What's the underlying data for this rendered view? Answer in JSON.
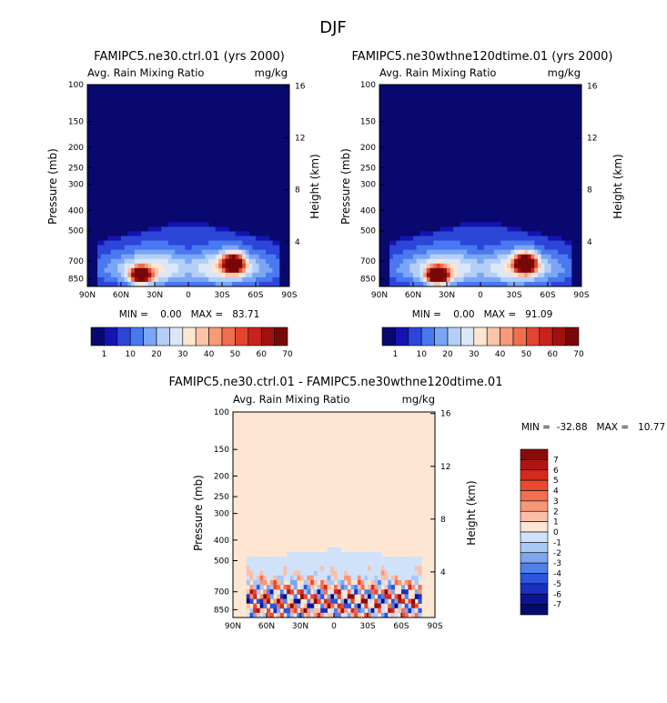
{
  "figure": {
    "title": "DJF"
  },
  "chart_data": [
    {
      "type": "heatmap",
      "title": "FAMIPC5.ne30.ctrl.01 (yrs 2000)",
      "variable": "Avg. Rain Mixing Ratio",
      "units": "mg/kg",
      "xlabel": "",
      "ylabel": "Pressure (mb)",
      "ylabel_right": "Height (km)",
      "x_ticks": [
        "90N",
        "60N",
        "30N",
        "0",
        "30S",
        "60S",
        "90S"
      ],
      "y_ticks": [
        "100",
        "150",
        "200",
        "250",
        "300",
        "400",
        "500",
        "700",
        "850"
      ],
      "y_right_ticks": [
        "16",
        "12",
        "8",
        "4"
      ],
      "minmax": "MIN =    0.00   MAX =   83.71",
      "min": 0.0,
      "max": 83.71,
      "colorbar": {
        "orientation": "horizontal",
        "labels": [
          "1",
          "10",
          "20",
          "30",
          "40",
          "50",
          "60",
          "70"
        ],
        "colors": [
          "#08086e",
          "#1414b4",
          "#2c46d8",
          "#4a78f0",
          "#7aa6f5",
          "#b4cff7",
          "#dbe7f8",
          "#fde6d2",
          "#fbc4a8",
          "#f79a78",
          "#f06e4e",
          "#e24430",
          "#c8221a",
          "#a2100e",
          "#780808"
        ]
      },
      "blobs": [
        {
          "lat": 42,
          "p": 820,
          "v": 75
        },
        {
          "lat": -40,
          "p": 720,
          "v": 83
        }
      ]
    },
    {
      "type": "heatmap",
      "title": "FAMIPC5.ne30wthne120dtime.01 (yrs 2000)",
      "variable": "Avg. Rain Mixing Ratio",
      "units": "mg/kg",
      "xlabel": "",
      "ylabel": "Pressure (mb)",
      "ylabel_right": "Height (km)",
      "x_ticks": [
        "90N",
        "60N",
        "30N",
        "0",
        "30S",
        "60S",
        "90S"
      ],
      "y_ticks": [
        "100",
        "150",
        "200",
        "250",
        "300",
        "400",
        "500",
        "700",
        "850"
      ],
      "y_right_ticks": [
        "16",
        "12",
        "8",
        "4"
      ],
      "minmax": "MIN =    0.00   MAX =   91.09",
      "min": 0.0,
      "max": 91.09,
      "colorbar": {
        "orientation": "horizontal",
        "labels": [
          "1",
          "10",
          "20",
          "30",
          "40",
          "50",
          "60",
          "70"
        ],
        "colors": [
          "#08086e",
          "#1414b4",
          "#2c46d8",
          "#4a78f0",
          "#7aa6f5",
          "#b4cff7",
          "#dbe7f8",
          "#fde6d2",
          "#fbc4a8",
          "#f79a78",
          "#f06e4e",
          "#e24430",
          "#c8221a",
          "#a2100e",
          "#780808"
        ]
      },
      "blobs": [
        {
          "lat": 38,
          "p": 820,
          "v": 88
        },
        {
          "lat": -40,
          "p": 720,
          "v": 91
        }
      ]
    },
    {
      "type": "heatmap",
      "title": "FAMIPC5.ne30.ctrl.01 - FAMIPC5.ne30wthne120dtime.01",
      "variable": "Avg. Rain Mixing Ratio",
      "units": "mg/kg",
      "xlabel": "",
      "ylabel": "Pressure (mb)",
      "ylabel_right": "Height (km)",
      "x_ticks": [
        "90N",
        "60N",
        "30N",
        "0",
        "30S",
        "60S",
        "90S"
      ],
      "y_ticks": [
        "100",
        "150",
        "200",
        "250",
        "300",
        "400",
        "500",
        "700",
        "850"
      ],
      "y_right_ticks": [
        "16",
        "12",
        "8",
        "4"
      ],
      "minmax": "MIN =  -32.88   MAX =   10.77",
      "min": -32.88,
      "max": 10.77,
      "colorbar": {
        "orientation": "vertical",
        "labels": [
          "7",
          "6",
          "5",
          "4",
          "3",
          "2",
          "1",
          "0",
          "-1",
          "-2",
          "-3",
          "-4",
          "-5",
          "-6",
          "-7"
        ],
        "colors": [
          "#8b0a0a",
          "#b01414",
          "#d42a1e",
          "#e84a30",
          "#f26e50",
          "#f7977a",
          "#fbbfa6",
          "#fde6d2",
          "#cfe2fa",
          "#a8c8f6",
          "#7ea6f0",
          "#5080e8",
          "#2c56dc",
          "#1a30c0",
          "#0c1496",
          "#050a6e"
        ]
      }
    }
  ]
}
